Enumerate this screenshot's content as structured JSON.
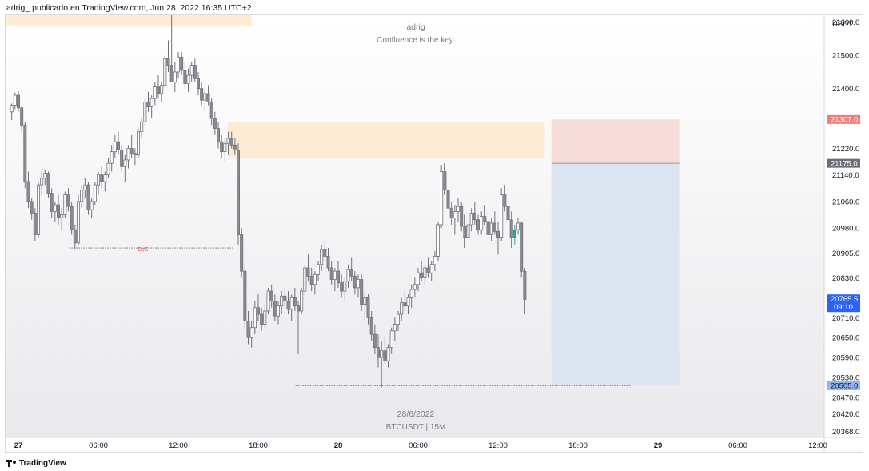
{
  "header": {
    "publish_line": "adrig_ publicado en TradingView.com, Jun 28, 2022 16:35 UTC+2"
  },
  "watermark": {
    "author": "adrig",
    "motto": "Confluence is the key.",
    "date": "28/6/2022",
    "symbol": "BTCUSDT | 15M"
  },
  "footer": {
    "brand": "TradingView"
  },
  "colors": {
    "up_candle": "#ffffff",
    "down_candle": "#8a8c94",
    "candle_border": "#6f7178",
    "last_up": "#26a69a",
    "supply_zone": "#fdebd3",
    "stop_zone": "#f7dcdc",
    "target_zone": "#dce4f1",
    "price_badge_blue": "#2962ff",
    "price_badge_red": "#f07d7d",
    "price_badge_grey": "#6b6e78",
    "price_badge_lightblue": "#8fb7f2"
  },
  "chart_data": {
    "type": "candlestick",
    "symbol": "BTCUSDT",
    "interval": "15M",
    "currency": "USDT",
    "y_ticks": [
      21600,
      21500,
      21400,
      21220,
      21140,
      21060,
      20980,
      20905,
      20830,
      20710,
      20650,
      20590,
      20530,
      20470,
      20420,
      20368
    ],
    "y_tick_labels": [
      "21600.0",
      "21500.0",
      "21400.0",
      "21220.0",
      "21140.0",
      "21060.0",
      "20980.0",
      "20905.0",
      "20830.0",
      "20710.0",
      "20650.0",
      "20590.0",
      "20530.0",
      "20470.0",
      "20420.0",
      "20368.0"
    ],
    "x_labels": [
      "27",
      "06:00",
      "12:00",
      "18:00",
      "28",
      "06:00",
      "12:00",
      "18:00",
      "29",
      "06:00",
      "12:00"
    ],
    "x_label_positions_hours": [
      0,
      6,
      12,
      18,
      24,
      30,
      36,
      42,
      48,
      54,
      60
    ],
    "price_badges": [
      {
        "label": "21307.0",
        "value": 21307,
        "kind": "red"
      },
      {
        "label": "21175.0",
        "value": 21175,
        "kind": "grey"
      },
      {
        "label": "20765.5",
        "sub": "09:10",
        "value": 20765.5,
        "kind": "blue"
      },
      {
        "label": "20505.0",
        "value": 20505,
        "kind": "lightblue"
      }
    ],
    "annotations": [
      {
        "type": "level",
        "label": "BoS",
        "price": 20920,
        "from_hour": 3.8,
        "to_hour": 16.1
      },
      {
        "type": "level",
        "label": "",
        "price": 20505,
        "from_hour": 20.8,
        "to_hour": 46.0
      },
      {
        "type": "zone",
        "kind": "supply",
        "price_top": 21664,
        "price_bottom": 21590,
        "from_hour": -1.0,
        "to_hour": 17.5
      },
      {
        "type": "zone",
        "kind": "supply",
        "price_top": 21300,
        "price_bottom": 21192,
        "from_hour": 15.7,
        "to_hour": 39.5
      },
      {
        "type": "position",
        "entry": 21175,
        "stop": 21307,
        "target": 20505,
        "from_hour": 40.0,
        "to_hour": 49.6
      }
    ],
    "candles_start_hour": -0.5,
    "candle_interval_hours": 0.25,
    "ohlc": [
      [
        21330,
        21355,
        21305,
        21350
      ],
      [
        21350,
        21388,
        21338,
        21380
      ],
      [
        21380,
        21392,
        21330,
        21342
      ],
      [
        21342,
        21348,
        21270,
        21290
      ],
      [
        21290,
        21300,
        21100,
        21120
      ],
      [
        21120,
        21150,
        21040,
        21060
      ],
      [
        21060,
        21070,
        21005,
        21025
      ],
      [
        21025,
        21040,
        20940,
        20960
      ],
      [
        20960,
        21120,
        20950,
        21110
      ],
      [
        21110,
        21150,
        21080,
        21130
      ],
      [
        21130,
        21155,
        21110,
        21145
      ],
      [
        21145,
        21150,
        21070,
        21085
      ],
      [
        21085,
        21100,
        21010,
        21030
      ],
      [
        21030,
        21060,
        21000,
        21050
      ],
      [
        21050,
        21080,
        20990,
        21010
      ],
      [
        21010,
        21040,
        20970,
        21020
      ],
      [
        21020,
        21090,
        21010,
        21080
      ],
      [
        21080,
        21100,
        21030,
        21045
      ],
      [
        21045,
        21060,
        20960,
        20975
      ],
      [
        20975,
        20990,
        20915,
        20935
      ],
      [
        20935,
        21080,
        20930,
        21060
      ],
      [
        21060,
        21105,
        21040,
        21095
      ],
      [
        21095,
        21130,
        21070,
        21110
      ],
      [
        21110,
        21120,
        21020,
        21035
      ],
      [
        21035,
        21070,
        21010,
        21060
      ],
      [
        21060,
        21120,
        21050,
        21110
      ],
      [
        21110,
        21150,
        21080,
        21140
      ],
      [
        21140,
        21165,
        21100,
        21120
      ],
      [
        21120,
        21150,
        21090,
        21140
      ],
      [
        21140,
        21190,
        21130,
        21175
      ],
      [
        21175,
        21230,
        21150,
        21210
      ],
      [
        21210,
        21260,
        21190,
        21240
      ],
      [
        21240,
        21270,
        21200,
        21215
      ],
      [
        21215,
        21230,
        21150,
        21165
      ],
      [
        21165,
        21200,
        21120,
        21185
      ],
      [
        21185,
        21230,
        21160,
        21220
      ],
      [
        21220,
        21260,
        21190,
        21205
      ],
      [
        21205,
        21220,
        21170,
        21200
      ],
      [
        21200,
        21280,
        21190,
        21270
      ],
      [
        21270,
        21310,
        21250,
        21300
      ],
      [
        21300,
        21370,
        21290,
        21360
      ],
      [
        21360,
        21390,
        21330,
        21345
      ],
      [
        21345,
        21380,
        21310,
        21370
      ],
      [
        21370,
        21420,
        21350,
        21405
      ],
      [
        21405,
        21440,
        21370,
        21385
      ],
      [
        21385,
        21420,
        21360,
        21410
      ],
      [
        21410,
        21500,
        21400,
        21490
      ],
      [
        21490,
        21545,
        21450,
        21470
      ],
      [
        21470,
        21660,
        21420,
        21420
      ],
      [
        21420,
        21480,
        21390,
        21450
      ],
      [
        21450,
        21510,
        21430,
        21495
      ],
      [
        21495,
        21510,
        21440,
        21455
      ],
      [
        21455,
        21480,
        21400,
        21415
      ],
      [
        21415,
        21460,
        21390,
        21440
      ],
      [
        21440,
        21480,
        21420,
        21470
      ],
      [
        21470,
        21490,
        21420,
        21430
      ],
      [
        21430,
        21450,
        21380,
        21400
      ],
      [
        21400,
        21420,
        21350,
        21365
      ],
      [
        21365,
        21400,
        21330,
        21385
      ],
      [
        21385,
        21410,
        21350,
        21360
      ],
      [
        21360,
        21370,
        21290,
        21310
      ],
      [
        21310,
        21330,
        21260,
        21280
      ],
      [
        21280,
        21300,
        21220,
        21240
      ],
      [
        21240,
        21260,
        21190,
        21210
      ],
      [
        21210,
        21250,
        21180,
        21235
      ],
      [
        21235,
        21270,
        21200,
        21250
      ],
      [
        21250,
        21270,
        21220,
        21230
      ],
      [
        21230,
        21250,
        21200,
        21215
      ],
      [
        21215,
        21235,
        20930,
        20960
      ],
      [
        20960,
        20980,
        20830,
        20850
      ],
      [
        20850,
        20870,
        20680,
        20700
      ],
      [
        20700,
        20730,
        20630,
        20650
      ],
      [
        20650,
        20700,
        20620,
        20680
      ],
      [
        20680,
        20760,
        20660,
        20740
      ],
      [
        20740,
        20780,
        20700,
        20720
      ],
      [
        20720,
        20740,
        20670,
        20690
      ],
      [
        20690,
        20750,
        20680,
        20730
      ],
      [
        20730,
        20800,
        20720,
        20790
      ],
      [
        20790,
        20810,
        20740,
        20760
      ],
      [
        20760,
        20780,
        20700,
        20715
      ],
      [
        20715,
        20760,
        20690,
        20745
      ],
      [
        20745,
        20790,
        20720,
        20775
      ],
      [
        20775,
        20800,
        20740,
        20760
      ],
      [
        20760,
        20790,
        20720,
        20735
      ],
      [
        20735,
        20780,
        20700,
        20770
      ],
      [
        20770,
        20800,
        20730,
        20745
      ],
      [
        20745,
        20760,
        20600,
        20730
      ],
      [
        20730,
        20800,
        20720,
        20790
      ],
      [
        20790,
        20870,
        20780,
        20860
      ],
      [
        20860,
        20900,
        20820,
        20835
      ],
      [
        20835,
        20860,
        20790,
        20810
      ],
      [
        20810,
        20850,
        20780,
        20840
      ],
      [
        20840,
        20880,
        20820,
        20870
      ],
      [
        20870,
        20930,
        20850,
        20915
      ],
      [
        20915,
        20940,
        20880,
        20895
      ],
      [
        20895,
        20920,
        20850,
        20860
      ],
      [
        20860,
        20880,
        20810,
        20825
      ],
      [
        20825,
        20860,
        20790,
        20850
      ],
      [
        20850,
        20880,
        20800,
        20815
      ],
      [
        20815,
        20840,
        20770,
        20790
      ],
      [
        20790,
        20830,
        20760,
        20820
      ],
      [
        20820,
        20870,
        20800,
        20855
      ],
      [
        20855,
        20890,
        20820,
        20835
      ],
      [
        20835,
        20850,
        20780,
        20800
      ],
      [
        20800,
        20840,
        20770,
        20825
      ],
      [
        20825,
        20840,
        20730,
        20750
      ],
      [
        20750,
        20790,
        20700,
        20770
      ],
      [
        20770,
        20780,
        20690,
        20710
      ],
      [
        20710,
        20730,
        20640,
        20660
      ],
      [
        20660,
        20690,
        20600,
        20620
      ],
      [
        20620,
        20660,
        20560,
        20590
      ],
      [
        20590,
        20640,
        20500,
        20610
      ],
      [
        20610,
        20650,
        20570,
        20580
      ],
      [
        20580,
        20630,
        20560,
        20620
      ],
      [
        20620,
        20680,
        20600,
        20670
      ],
      [
        20670,
        20710,
        20640,
        20690
      ],
      [
        20690,
        20730,
        20670,
        20720
      ],
      [
        20720,
        20770,
        20700,
        20755
      ],
      [
        20755,
        20790,
        20730,
        20745
      ],
      [
        20745,
        20780,
        20720,
        20770
      ],
      [
        20770,
        20810,
        20740,
        20795
      ],
      [
        20795,
        20830,
        20770,
        20810
      ],
      [
        20810,
        20860,
        20790,
        20845
      ],
      [
        20845,
        20880,
        20820,
        20830
      ],
      [
        20830,
        20870,
        20810,
        20860
      ],
      [
        20860,
        20890,
        20830,
        20845
      ],
      [
        20845,
        20880,
        20820,
        20870
      ],
      [
        20870,
        20910,
        20850,
        20895
      ],
      [
        20895,
        21000,
        20880,
        20990
      ],
      [
        20990,
        21170,
        20980,
        21150
      ],
      [
        21150,
        21175,
        21080,
        21095
      ],
      [
        21095,
        21120,
        21020,
        21040
      ],
      [
        21040,
        21060,
        20990,
        21010
      ],
      [
        21010,
        21050,
        20960,
        21030
      ],
      [
        21030,
        21070,
        21000,
        21045
      ],
      [
        21045,
        21060,
        20970,
        20985
      ],
      [
        20985,
        21020,
        20920,
        20950
      ],
      [
        20950,
        21000,
        20930,
        20990
      ],
      [
        20990,
        21040,
        20970,
        21025
      ],
      [
        21025,
        21060,
        20990,
        21005
      ],
      [
        21005,
        21020,
        20960,
        20975
      ],
      [
        20975,
        21030,
        20960,
        21015
      ],
      [
        21015,
        21050,
        20990,
        21000
      ],
      [
        21000,
        21010,
        20940,
        20960
      ],
      [
        20960,
        21010,
        20940,
        20995
      ],
      [
        20995,
        21030,
        20960,
        20970
      ],
      [
        20970,
        21000,
        20900,
        20950
      ],
      [
        20950,
        21100,
        20940,
        21080
      ],
      [
        21080,
        21110,
        21030,
        21045
      ],
      [
        21045,
        21070,
        20990,
        21005
      ],
      [
        21005,
        21030,
        20920,
        20950
      ],
      [
        20950,
        20990,
        20930,
        20975
      ],
      [
        20975,
        21010,
        20960,
        20995
      ],
      [
        20995,
        21000,
        20830,
        20850
      ],
      [
        20850,
        20860,
        20720,
        20765
      ]
    ]
  }
}
